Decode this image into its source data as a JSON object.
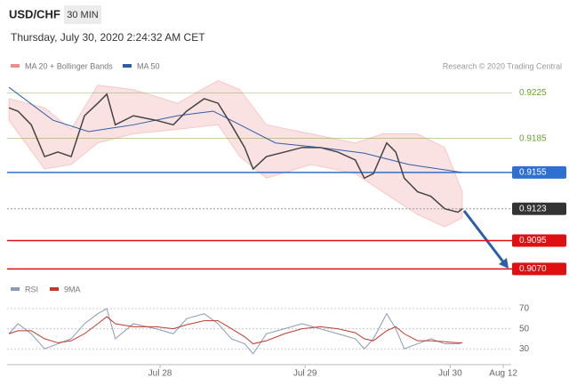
{
  "chart_data": [
    {
      "type": "line",
      "title": "USD/CHF",
      "timeframe": "30 MIN",
      "subtitle": "Thursday, July 30, 2020 2:24:32 AM CET",
      "source": "Research © 2020 Trading Central",
      "xlim": [
        0,
        83.4
      ],
      "ylim": [
        0.9064,
        0.9238
      ],
      "yticks": [
        0.9225,
        0.9185,
        0.9155,
        0.9123,
        0.9095,
        {
          "value": 0.907,
          "label": "0.9070"
        }
      ],
      "level_colors": [
        "#6aa02c",
        "#6aa02c",
        "#2f6fd0",
        "#333333",
        "#e01010",
        "#e01010"
      ],
      "level_boxed": [
        false,
        false,
        true,
        true,
        true,
        true
      ],
      "level_dashed": [
        false,
        false,
        false,
        true,
        false,
        false
      ],
      "price": {
        "color": "#444444",
        "x": [
          0.3,
          1.8,
          4.0,
          6.2,
          8.4,
          10.6,
          12.8,
          15.0,
          16.5,
          17.9,
          20.9,
          24.6,
          27.5,
          29.7,
          32.6,
          34.9,
          37.1,
          39.3,
          40.7,
          42.9,
          45.9,
          48.8,
          51.8,
          54.7,
          57.6,
          59.1,
          60.6,
          62.8,
          64.3,
          65.7,
          67.9,
          70.1,
          72.4,
          74.6,
          75.3
        ],
        "values": [
          0.9212,
          0.9209,
          0.9197,
          0.9169,
          0.9173,
          0.9169,
          0.9205,
          0.9216,
          0.9224,
          0.9197,
          0.9205,
          0.9201,
          0.9197,
          0.9209,
          0.922,
          0.9216,
          0.9197,
          0.9177,
          0.9158,
          0.9169,
          0.9173,
          0.9177,
          0.9177,
          0.9173,
          0.9166,
          0.915,
          0.9154,
          0.9181,
          0.9173,
          0.915,
          0.9138,
          0.9134,
          0.9123,
          0.912,
          0.9123
        ]
      },
      "series": [
        {
          "name": "MA 20 + Bollinger Bands",
          "color": "#f08c8c",
          "x": [
            0.3,
            6.2,
            10.6,
            15.0,
            20.9,
            28.2,
            34.9,
            38.5,
            42.9,
            50.3,
            57.6,
            62.1,
            67.9,
            72.4,
            75.3
          ],
          "upper": [
            0.922,
            0.9212,
            0.9193,
            0.9232,
            0.9228,
            0.9216,
            0.9236,
            0.9228,
            0.9197,
            0.9189,
            0.9181,
            0.9189,
            0.9189,
            0.9177,
            0.9138
          ],
          "lower": [
            0.9201,
            0.9158,
            0.9162,
            0.9181,
            0.9189,
            0.9193,
            0.9197,
            0.9169,
            0.915,
            0.9162,
            0.9154,
            0.9138,
            0.9118,
            0.9107,
            0.9115
          ]
        },
        {
          "name": "MA 50",
          "color": "#2d5ea8",
          "x": [
            0.3,
            7.6,
            13.5,
            20.9,
            28.2,
            34.1,
            40.0,
            44.4,
            51.8,
            59.1,
            66.5,
            75.3
          ],
          "values": [
            0.923,
            0.9201,
            0.9191,
            0.9197,
            0.9205,
            0.9209,
            0.9193,
            0.9181,
            0.9177,
            0.9172,
            0.9162,
            0.9155
          ]
        }
      ]
    },
    {
      "type": "line",
      "xlim": [
        0,
        83.4
      ],
      "ylim": [
        16,
        78
      ],
      "yticks": [
        70,
        50,
        30
      ],
      "xticks": [
        {
          "value": 25.3,
          "label": "Jul 28"
        },
        {
          "value": 49.3,
          "label": "Jul 29"
        },
        {
          "value": 73.3,
          "label": "Jul 30"
        },
        {
          "value": 82.1,
          "label": "Aug 12"
        }
      ],
      "x": [
        0.3,
        1.8,
        4.0,
        6.2,
        8.4,
        10.6,
        12.8,
        15.0,
        16.5,
        17.9,
        20.9,
        24.6,
        27.5,
        29.7,
        32.6,
        34.9,
        37.1,
        39.3,
        40.7,
        42.9,
        45.9,
        48.8,
        51.8,
        54.7,
        57.6,
        59.1,
        60.6,
        62.8,
        64.3,
        65.7,
        67.9,
        70.1,
        72.4,
        74.6,
        75.3
      ],
      "series": [
        {
          "name": "RSI",
          "color": "#8a9ab8",
          "values": [
            45,
            55,
            45,
            30,
            35,
            40,
            55,
            65,
            70,
            40,
            55,
            50,
            45,
            60,
            65,
            55,
            40,
            35,
            25,
            45,
            50,
            55,
            50,
            45,
            40,
            30,
            40,
            65,
            50,
            30,
            35,
            40,
            35,
            35,
            36
          ]
        },
        {
          "name": "9MA",
          "color": "#c0392b",
          "values": [
            45,
            48,
            48,
            40,
            36,
            38,
            45,
            55,
            62,
            55,
            52,
            52,
            50,
            54,
            58,
            58,
            50,
            42,
            35,
            38,
            45,
            50,
            52,
            50,
            46,
            40,
            38,
            48,
            52,
            45,
            38,
            38,
            37,
            36,
            36
          ]
        }
      ]
    }
  ]
}
